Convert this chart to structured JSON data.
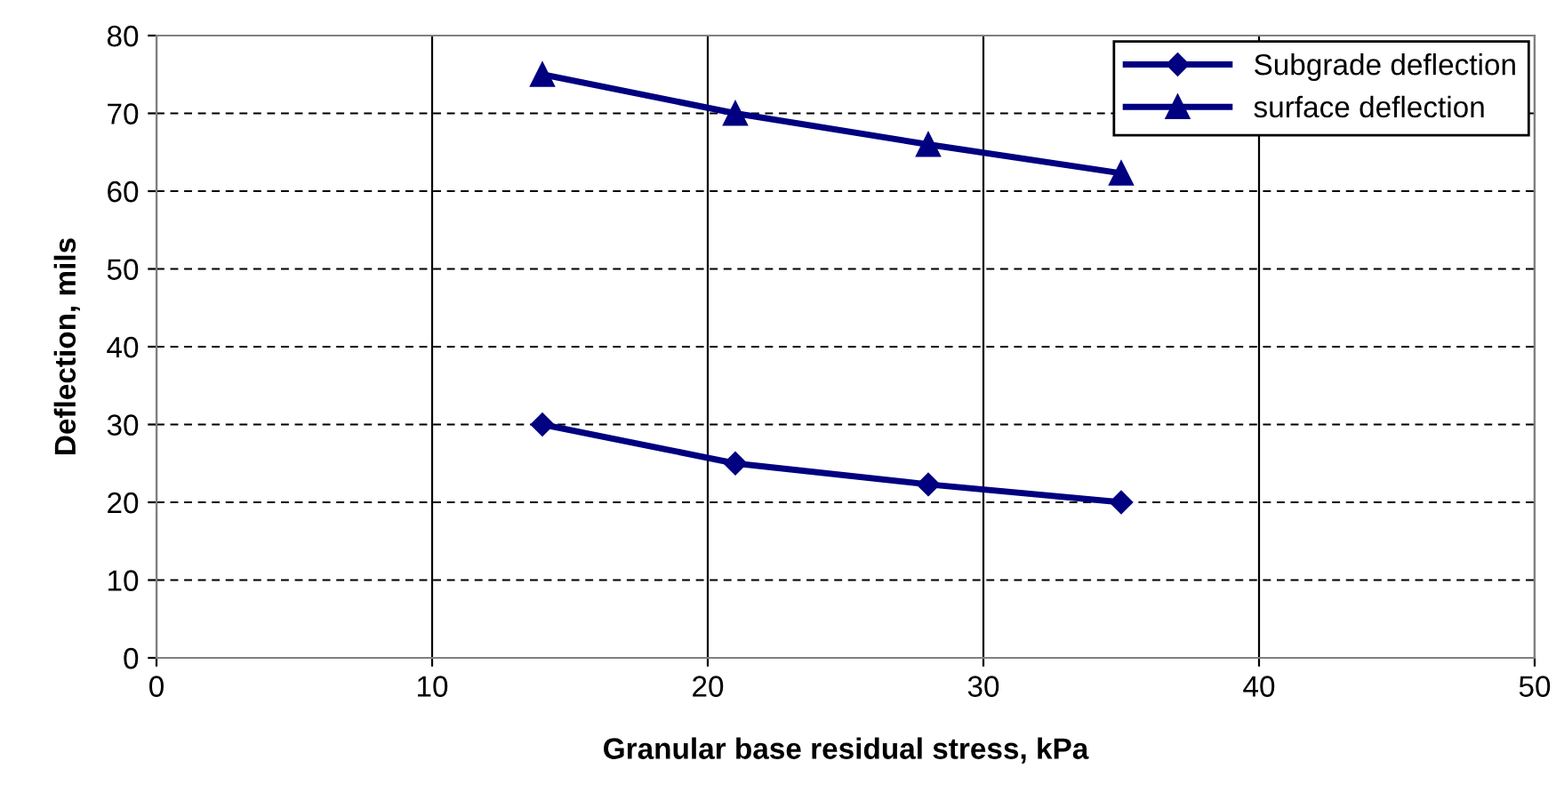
{
  "chart_data": {
    "type": "line",
    "xlabel": "Granular base residual stress, kPa",
    "ylabel": "Deflection, mils",
    "x": [
      14,
      21,
      28,
      35
    ],
    "series": [
      {
        "name": "Subgrade deflection",
        "color": "#000080",
        "marker": "diamond",
        "values": [
          30,
          25,
          22.3,
          20
        ]
      },
      {
        "name": "surface deflection",
        "color": "#000080",
        "marker": "triangle",
        "values": [
          75,
          70,
          66,
          62.3
        ]
      }
    ],
    "xlim": [
      0,
      50
    ],
    "xticks": [
      0,
      10,
      20,
      30,
      40,
      50
    ],
    "ylim": [
      0,
      80
    ],
    "yticks": [
      0,
      10,
      20,
      30,
      40,
      50,
      60,
      70,
      80
    ],
    "grid": true,
    "legend": "top right",
    "line_style": "solid"
  }
}
